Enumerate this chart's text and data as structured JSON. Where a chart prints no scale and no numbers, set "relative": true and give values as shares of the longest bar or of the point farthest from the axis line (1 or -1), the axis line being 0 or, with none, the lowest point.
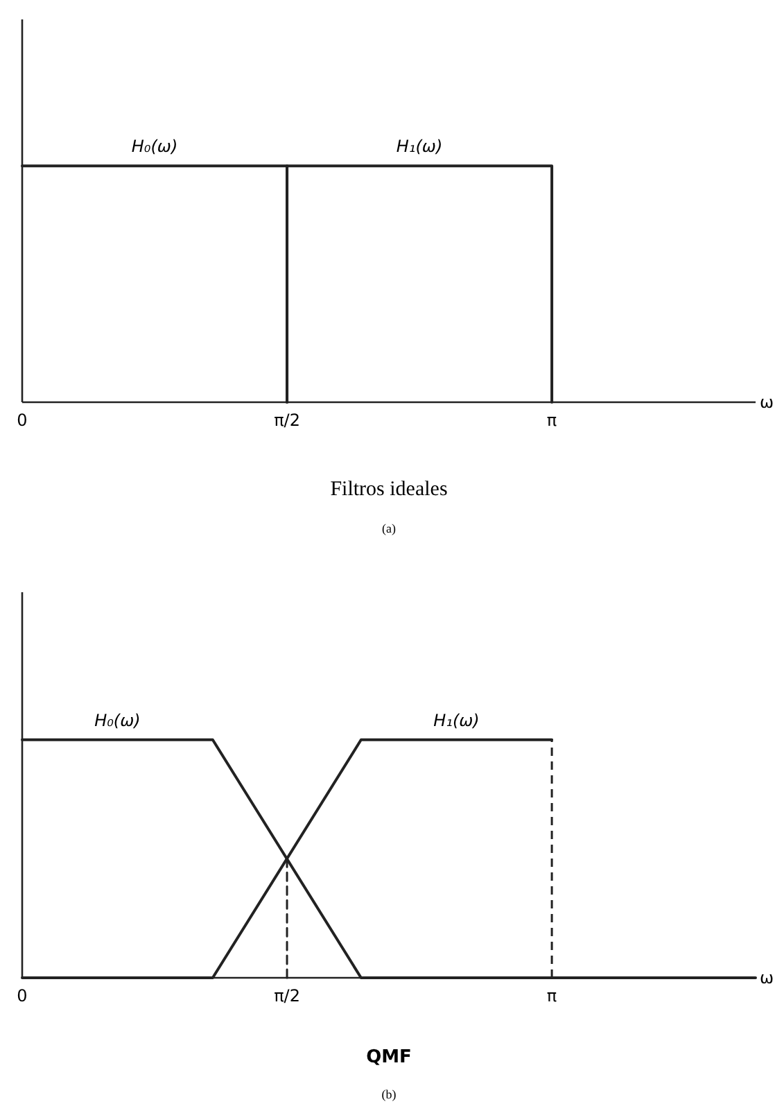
{
  "chart_data": [
    {
      "type": "line",
      "title": "Filtros ideales",
      "xlabel": "ω",
      "relative": true,
      "xlim": [
        0,
        4.35
      ],
      "xticks": [
        {
          "value": 0,
          "label": "0"
        },
        {
          "value": 1.5708,
          "label": "π/2"
        },
        {
          "value": 3.1416,
          "label": "π"
        }
      ],
      "annotations": [
        "(a)"
      ],
      "series": [
        {
          "name": "H₀(ω)",
          "color": "#222222",
          "x": [
            0,
            1.5708,
            1.5708
          ],
          "values": [
            1,
            1,
            0
          ]
        },
        {
          "name": "H₁(ω)",
          "color": "#222222",
          "x": [
            1.5708,
            1.5708,
            3.1416,
            3.1416
          ],
          "values": [
            0,
            1,
            1,
            0
          ]
        }
      ]
    },
    {
      "type": "line",
      "title": "QMF",
      "xlabel": "ω",
      "relative": true,
      "xlim": [
        0,
        4.35
      ],
      "xticks": [
        {
          "value": 0,
          "label": "0"
        },
        {
          "value": 1.5708,
          "label": "π/2"
        },
        {
          "value": 3.1416,
          "label": "π"
        }
      ],
      "annotations": [
        "(b)"
      ],
      "series": [
        {
          "name": "H₀(ω)",
          "color": "#222222",
          "x": [
            0,
            1.13,
            2.01,
            4.35
          ],
          "values": [
            1,
            1,
            0,
            0
          ]
        },
        {
          "name": "H₁(ω)",
          "color": "#222222",
          "x": [
            0,
            1.13,
            2.01,
            3.1416
          ],
          "values": [
            0,
            0,
            1,
            1
          ]
        },
        {
          "color": "#222222",
          "line_style": "dashed",
          "x": [
            1.5708,
            1.5708
          ],
          "values": [
            0.5,
            0
          ]
        }
      ],
      "ref_lines": [
        {
          "axis": "x",
          "value": 3.1416,
          "color": "#222222",
          "line_style": "dashed"
        }
      ]
    }
  ]
}
